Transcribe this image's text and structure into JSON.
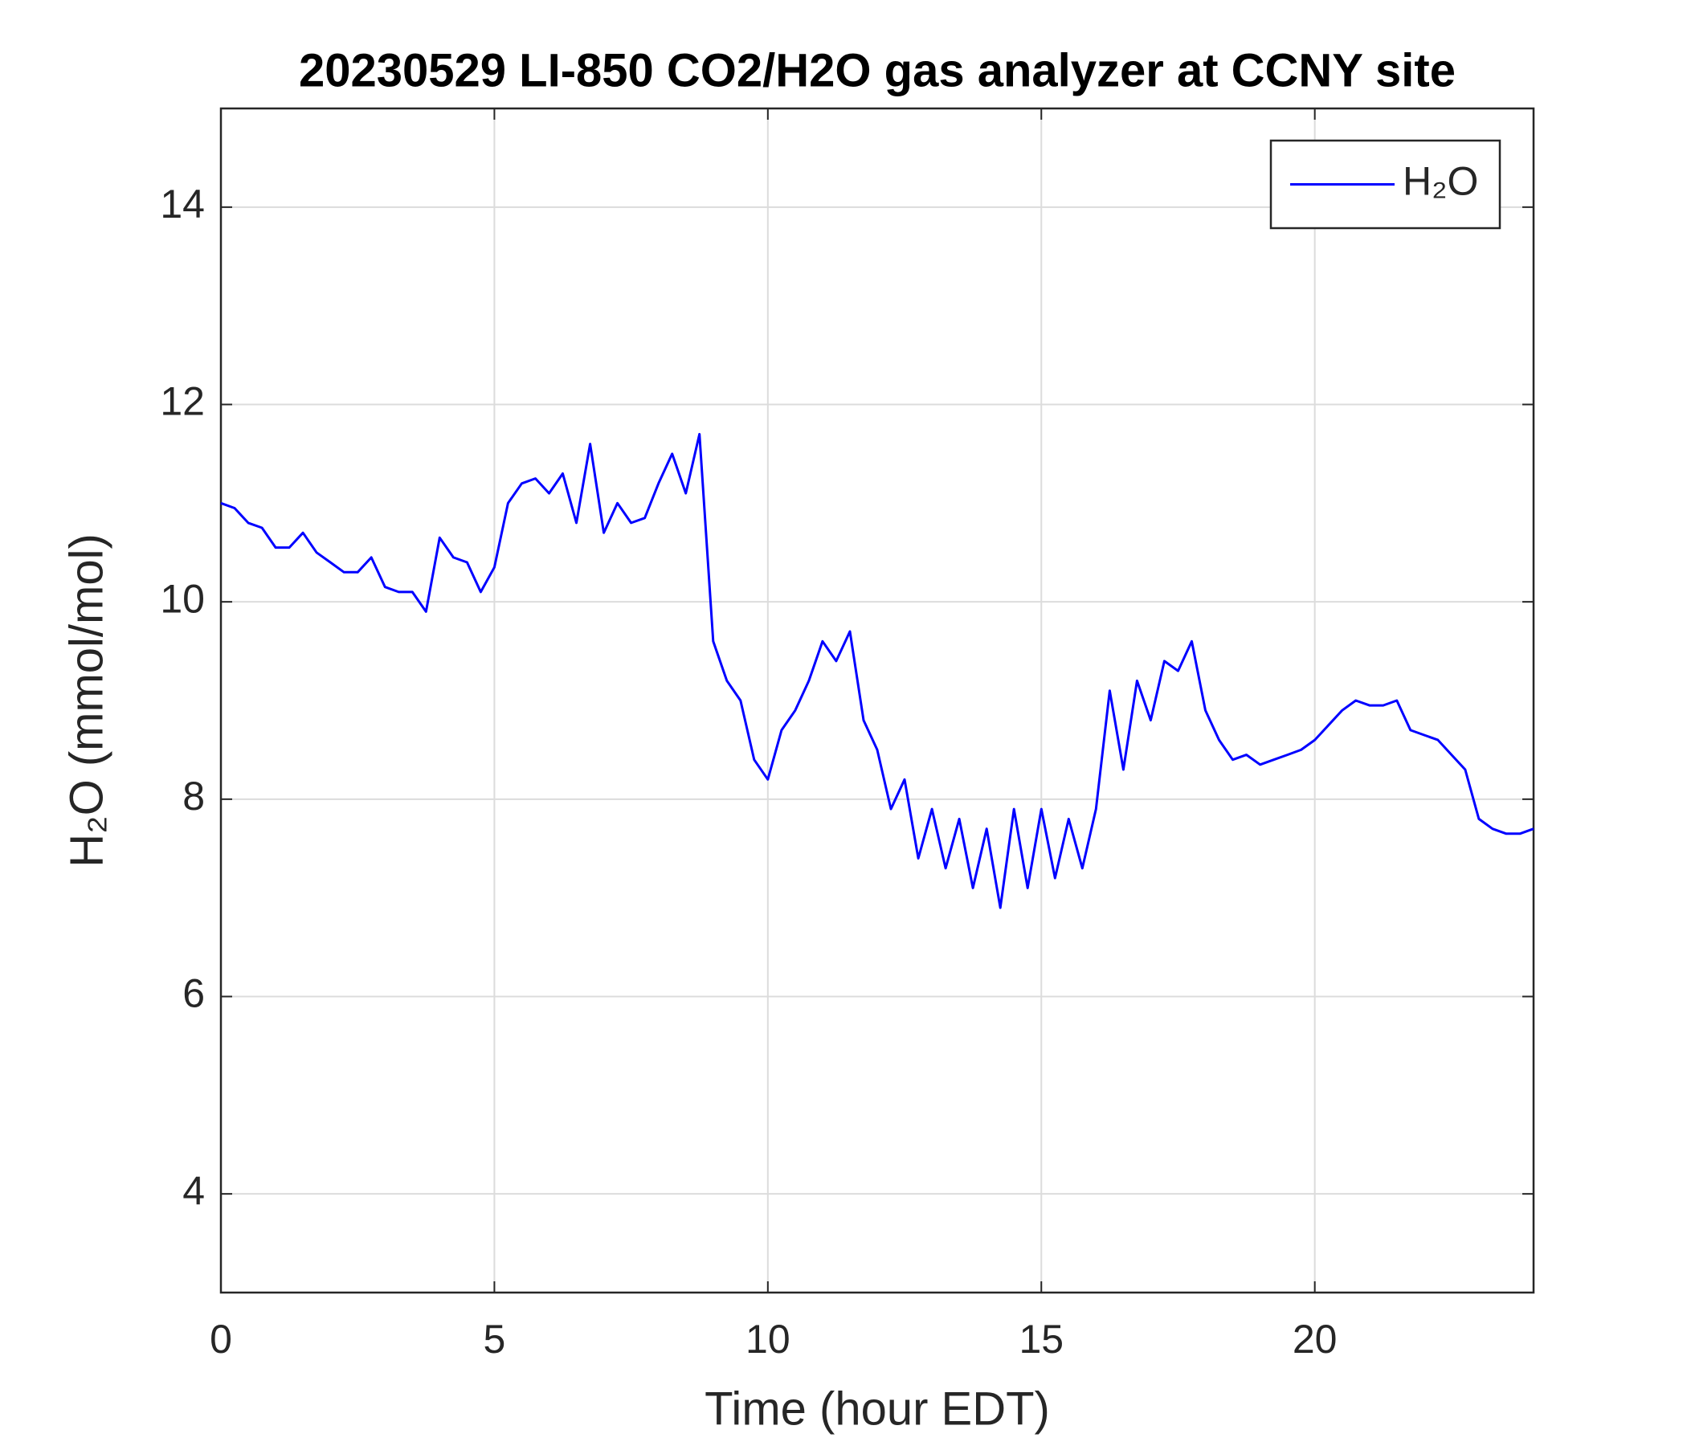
{
  "chart_data": {
    "type": "line",
    "title": "20230529 LI-850 CO2/H2O gas analyzer at CCNY site",
    "x_label": "Time (hour EDT)",
    "y_label": "H₂O (mmol/mol)",
    "x": [
      0,
      0.25,
      0.5,
      0.75,
      1,
      1.25,
      1.5,
      1.75,
      2,
      2.25,
      2.5,
      2.75,
      3,
      3.25,
      3.5,
      3.75,
      4,
      4.25,
      4.5,
      4.75,
      5,
      5.25,
      5.5,
      5.75,
      6,
      6.25,
      6.5,
      6.75,
      7,
      7.25,
      7.5,
      7.75,
      8,
      8.25,
      8.5,
      8.75,
      9,
      9.25,
      9.5,
      9.75,
      10,
      10.25,
      10.5,
      10.75,
      11,
      11.25,
      11.5,
      11.75,
      12,
      12.25,
      12.5,
      12.75,
      13,
      13.25,
      13.5,
      13.75,
      14,
      14.25,
      14.5,
      14.75,
      15,
      15.25,
      15.5,
      15.75,
      16,
      16.25,
      16.5,
      16.75,
      17,
      17.25,
      17.5,
      17.75,
      18,
      18.25,
      18.5,
      18.75,
      19,
      19.25,
      19.5,
      19.75,
      20,
      20.25,
      20.5,
      20.75,
      21,
      21.25,
      21.5,
      21.75,
      22,
      22.25,
      22.5,
      22.75,
      23,
      23.25,
      23.5,
      23.75,
      24
    ],
    "series": [
      {
        "name": "H₂O",
        "color": "#0000ff",
        "values": [
          11.0,
          10.95,
          10.8,
          10.75,
          10.55,
          10.55,
          10.7,
          10.5,
          10.4,
          10.3,
          10.3,
          10.45,
          10.15,
          10.1,
          10.1,
          9.9,
          10.65,
          10.45,
          10.4,
          10.1,
          10.35,
          11.0,
          11.2,
          11.25,
          11.1,
          11.3,
          10.8,
          11.6,
          10.7,
          11.0,
          10.8,
          10.85,
          11.2,
          11.5,
          11.1,
          11.7,
          9.6,
          9.2,
          9.0,
          8.4,
          8.2,
          8.7,
          8.9,
          9.2,
          9.6,
          9.4,
          9.7,
          8.8,
          8.5,
          7.9,
          8.2,
          7.4,
          7.9,
          7.3,
          7.8,
          7.1,
          7.7,
          6.9,
          7.9,
          7.1,
          7.9,
          7.2,
          7.8,
          7.3,
          7.9,
          9.1,
          8.3,
          9.2,
          8.8,
          9.4,
          9.3,
          9.6,
          8.9,
          8.6,
          8.4,
          8.45,
          8.35,
          8.4,
          8.45,
          8.5,
          8.6,
          8.75,
          8.9,
          9.0,
          8.95,
          8.95,
          9.0,
          8.7,
          8.65,
          8.6,
          8.45,
          8.3,
          7.8,
          7.7,
          7.65,
          7.65,
          7.7
        ]
      }
    ],
    "xlim": [
      0,
      24
    ],
    "ylim": [
      3,
      15
    ],
    "xticks": [
      0,
      5,
      10,
      15,
      20
    ],
    "yticks": [
      4,
      6,
      8,
      10,
      12,
      14
    ],
    "grid": true,
    "legend": "upper right"
  }
}
